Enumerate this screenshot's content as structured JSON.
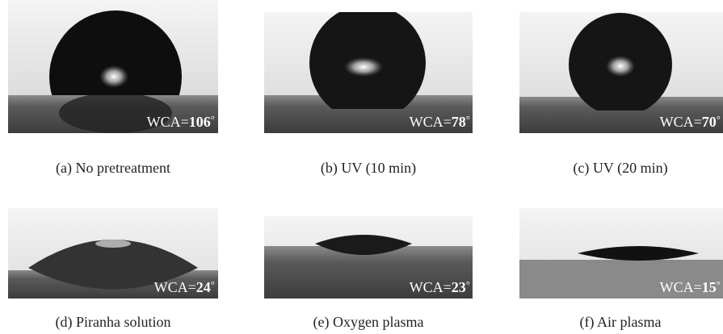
{
  "wca_prefix": "WCA=",
  "degree_symbol": "°",
  "panels": [
    {
      "caption": "(a) No pretreatment",
      "wca": 106
    },
    {
      "caption": "(b) UV (10 min)",
      "wca": 78
    },
    {
      "caption": "(c) UV (20 min)",
      "wca": 70
    },
    {
      "caption": "(d) Piranha solution",
      "wca": 24
    },
    {
      "caption": "(e) Oxygen plasma",
      "wca": 23
    },
    {
      "caption": "(f) Air plasma",
      "wca": 15
    }
  ]
}
